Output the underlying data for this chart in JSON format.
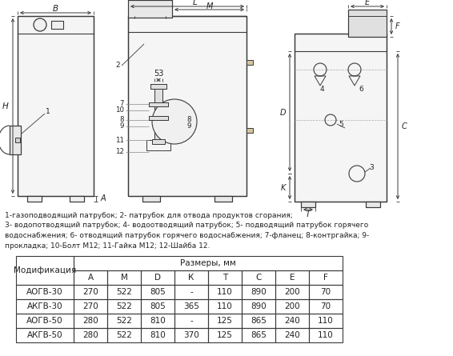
{
  "bg_color": "#ffffff",
  "line_color": "#3a3a3a",
  "text_color": "#222222",
  "caption_text": "1-газоподводящий патрубок; 2- патрубок для отвода продуктов сгорания;\n3- водопотводящий патрубок; 4- водоотводящий патрубок; 5- подводящий патрубок горячего\nводоснабжения; 6- отводящий патрубок горячего водоснабжения; 7-фланец; 8-контргайка; 9-\nпрокладка; 10-Болт М12; 11-Гайка М12; 12-Шайба 12.",
  "table_header_row1": [
    "Модификация",
    "Размеры, мм"
  ],
  "table_header_row2": [
    "",
    "А",
    "М",
    "D",
    "К",
    "Т",
    "С",
    "Е",
    "F"
  ],
  "table_data": [
    [
      "АОГВ-30",
      "270",
      "522",
      "805",
      "-",
      "110",
      "890",
      "200",
      "70"
    ],
    [
      "АКГВ-30",
      "270",
      "522",
      "805",
      "365",
      "110",
      "890",
      "200",
      "70"
    ],
    [
      "АОГВ-50",
      "280",
      "522",
      "810",
      "-",
      "125",
      "865",
      "240",
      "110"
    ],
    [
      "АКГВ-50",
      "280",
      "522",
      "810",
      "370",
      "125",
      "865",
      "240",
      "110"
    ]
  ]
}
